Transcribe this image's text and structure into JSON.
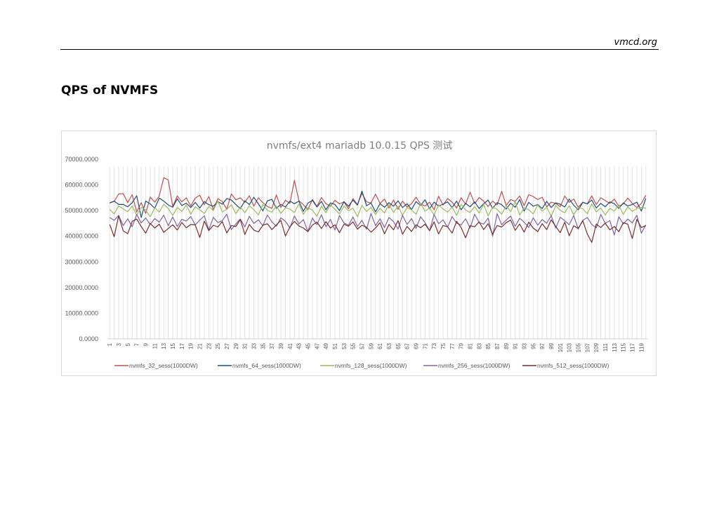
{
  "header": {
    "site": "vmcd.org"
  },
  "section": {
    "title": "QPS of NVMFS"
  },
  "chart_data": {
    "type": "line",
    "title": "nvmfs/ext4 mariadb 10.0.15 QPS 测试",
    "xlabel": "",
    "ylabel": "",
    "ylim": [
      0,
      70000
    ],
    "yticks": [
      0,
      10000,
      20000,
      30000,
      40000,
      50000,
      60000,
      70000
    ],
    "ytick_labels": [
      "0.0000",
      "10000.0000",
      "20000.0000",
      "30000.0000",
      "40000.0000",
      "50000.0000",
      "60000.0000",
      "70000.0000"
    ],
    "x": [
      1,
      2,
      3,
      4,
      5,
      6,
      7,
      8,
      9,
      10,
      11,
      12,
      13,
      14,
      15,
      16,
      17,
      18,
      19,
      20,
      21,
      22,
      23,
      24,
      25,
      26,
      27,
      28,
      29,
      30,
      31,
      32,
      33,
      34,
      35,
      36,
      37,
      38,
      39,
      40,
      41,
      42,
      43,
      44,
      45,
      46,
      47,
      48,
      49,
      50,
      51,
      52,
      53,
      54,
      55,
      56,
      57,
      58,
      59,
      60,
      61,
      62,
      63,
      64,
      65,
      66,
      67,
      68,
      69,
      70,
      71,
      72,
      73,
      74,
      75,
      76,
      77,
      78,
      79,
      80,
      81,
      82,
      83,
      84,
      85,
      86,
      87,
      88,
      89,
      90,
      91,
      92,
      93,
      94,
      95,
      96,
      97,
      98,
      99,
      100,
      101,
      102,
      103,
      104,
      105,
      106,
      107,
      108,
      109,
      110,
      111,
      112,
      113,
      114,
      115,
      116,
      117,
      118,
      119,
      120
    ],
    "xtick_labels": [
      "1",
      "3",
      "5",
      "7",
      "9",
      "11",
      "13",
      "15",
      "17",
      "19",
      "21",
      "23",
      "25",
      "27",
      "29",
      "31",
      "33",
      "35",
      "37",
      "39",
      "41",
      "43",
      "45",
      "47",
      "49",
      "51",
      "53",
      "55",
      "57",
      "59",
      "61",
      "63",
      "65",
      "67",
      "69",
      "71",
      "73",
      "75",
      "77",
      "79",
      "81",
      "83",
      "85",
      "87",
      "89",
      "91",
      "93",
      "95",
      "97",
      "99",
      "101",
      "103",
      "105",
      "107",
      "109",
      "111",
      "113",
      "115",
      "117",
      "119"
    ],
    "legend_position": "bottom",
    "grid": {
      "vertical": true,
      "horizontal": false
    },
    "series": [
      {
        "name": "nvmfs_32_sess(1000DW)",
        "color": "#c0504d",
        "values": [
          53000,
          53600,
          56500,
          56600,
          53100,
          56200,
          49400,
          53100,
          48900,
          55300,
          53300,
          55700,
          62800,
          62000,
          51600,
          55700,
          53400,
          55000,
          51800,
          54900,
          56000,
          52300,
          55500,
          50300,
          54700,
          53500,
          50500,
          56500,
          54200,
          55000,
          53200,
          55800,
          51700,
          55000,
          53100,
          51600,
          50900,
          56100,
          51200,
          54000,
          52800,
          61800,
          53900,
          52300,
          50400,
          54400,
          51600,
          55100,
          52700,
          51700,
          54000,
          52600,
          53400,
          50700,
          54700,
          52300,
          56800,
          53400,
          53000,
          56400,
          52800,
          54500,
          51000,
          54100,
          50500,
          53700,
          51400,
          52700,
          55200,
          52500,
          51800,
          53300,
          50300,
          55600,
          52200,
          54700,
          53300,
          51000,
          55000,
          52500,
          57200,
          52700,
          55100,
          53700,
          51600,
          53700,
          52200,
          57500,
          52000,
          54300,
          53600,
          55700,
          51900,
          56200,
          55500,
          54300,
          55200,
          51500,
          53300,
          52800,
          51500,
          55700,
          53200,
          54500,
          51300,
          53300,
          52600,
          55700,
          52400,
          55000,
          53900,
          52800,
          54500,
          51700,
          52600,
          54900,
          52800,
          51200,
          52800,
          56000
        ]
      },
      {
        "name": "nvmfs_64_sess(1000DW)",
        "color": "#1f4e79",
        "values": [
          53000,
          53700,
          52400,
          52400,
          51500,
          53100,
          55800,
          47300,
          53700,
          52600,
          50900,
          54900,
          53700,
          52200,
          51300,
          54600,
          52000,
          52900,
          51200,
          53200,
          51000,
          53500,
          52300,
          51700,
          53500,
          52500,
          54700,
          54100,
          52400,
          50800,
          53800,
          52300,
          55200,
          52600,
          49900,
          53800,
          54400,
          50900,
          52400,
          51400,
          53700,
          52700,
          53700,
          49700,
          52900,
          54000,
          51400,
          53600,
          50300,
          53000,
          52400,
          50000,
          53500,
          51700,
          54100,
          52100,
          57600,
          51900,
          53000,
          49500,
          52700,
          51300,
          53100,
          51700,
          53800,
          51200,
          52700,
          50400,
          53500,
          52000,
          54200,
          50700,
          53300,
          51800,
          52500,
          53400,
          51200,
          53700,
          50300,
          52800,
          51500,
          53400,
          50800,
          52700,
          54100,
          50900,
          53100,
          52300,
          50600,
          52900,
          51300,
          54300,
          49800,
          53200,
          51700,
          52400,
          50800,
          53600,
          51200,
          53000,
          52500,
          51400,
          54500,
          52100,
          50300,
          53200,
          52600,
          54100,
          51000,
          52800,
          51500,
          53400,
          52700,
          50900,
          53000,
          51800,
          52400,
          53300,
          49800,
          54800
        ]
      },
      {
        "name": "nvmfs_128_sess(1000DW)",
        "color": "#9bbb59",
        "values": [
          50500,
          48700,
          51800,
          50700,
          49600,
          51800,
          48200,
          51300,
          50200,
          47600,
          51100,
          49400,
          52500,
          50800,
          48100,
          51200,
          49700,
          52200,
          48600,
          51500,
          50300,
          48900,
          51600,
          50000,
          53800,
          49500,
          50500,
          52300,
          48800,
          51400,
          49200,
          51900,
          50400,
          48300,
          52400,
          50100,
          49400,
          51800,
          48900,
          51100,
          50600,
          49300,
          52600,
          48500,
          51200,
          50100,
          47800,
          51700,
          49200,
          52300,
          50500,
          48700,
          51800,
          49900,
          50900,
          47600,
          52100,
          49600,
          51300,
          48500,
          50900,
          49100,
          52400,
          49300,
          51700,
          48200,
          51200,
          50300,
          48500,
          52800,
          49800,
          51000,
          48300,
          52200,
          50600,
          49400,
          51500,
          48100,
          52400,
          50200,
          49300,
          51600,
          49000,
          52500,
          47900,
          51400,
          50500,
          48600,
          51900,
          49600,
          53600,
          48200,
          51100,
          50300,
          48700,
          52200,
          49800,
          51300,
          47800,
          52000,
          50100,
          49200,
          51900,
          48400,
          51200,
          50700,
          48800,
          52600,
          49500,
          51000,
          48300,
          50900,
          49800,
          52300,
          48500,
          51500,
          49700,
          50800,
          51300,
          50900
        ]
      },
      {
        "name": "nvmfs_256_sess(1000DW)",
        "color": "#8064a2",
        "values": [
          47300,
          46200,
          48100,
          44200,
          46800,
          43700,
          48500,
          45200,
          47100,
          44600,
          46900,
          45500,
          48200,
          44100,
          47500,
          43800,
          46600,
          45900,
          47700,
          44400,
          46300,
          48000,
          42500,
          47400,
          45300,
          46100,
          48600,
          42600,
          44800,
          46700,
          43600,
          47800,
          45000,
          46400,
          44100,
          48300,
          45600,
          43900,
          47200,
          45800,
          43300,
          47900,
          44800,
          46500,
          41900,
          47100,
          44500,
          48400,
          43700,
          46600,
          42400,
          48100,
          45200,
          44300,
          47500,
          43800,
          46200,
          42700,
          48900,
          44100,
          46800,
          43400,
          47300,
          45700,
          42800,
          48200,
          44600,
          46900,
          43100,
          47600,
          45300,
          42100,
          48500,
          44900,
          46400,
          43500,
          47700,
          45100,
          44400,
          46800,
          43200,
          48600,
          45400,
          44700,
          47100,
          40000,
          48800,
          44500,
          46300,
          47900,
          43900,
          47000,
          45500,
          43400,
          47200,
          44300,
          46500,
          45100,
          48000,
          43200,
          47400,
          46100,
          44500,
          48100,
          42800,
          46200,
          47300,
          44600,
          43300,
          48500,
          45000,
          46100,
          40500,
          47600,
          44800,
          46700,
          45200,
          48200,
          41200,
          44400
        ]
      },
      {
        "name": "nvmfs_512_sess(1000DW)",
        "color": "#7b2c2c",
        "values": [
          44600,
          39800,
          48000,
          42100,
          41000,
          45800,
          46700,
          43800,
          41200,
          45000,
          43200,
          44700,
          41500,
          43000,
          44500,
          42400,
          45400,
          43300,
          44600,
          44400,
          39500,
          45900,
          42200,
          44300,
          43600,
          45700,
          41300,
          44200,
          43800,
          46500,
          40700,
          44600,
          42400,
          41700,
          44300,
          44900,
          42600,
          44400,
          46200,
          40100,
          43600,
          45800,
          44000,
          43200,
          41800,
          44400,
          45500,
          43000,
          45700,
          43200,
          44500,
          41400,
          44700,
          43900,
          45600,
          42800,
          44300,
          43500,
          41600,
          43200,
          45300,
          40900,
          44600,
          42500,
          46100,
          40800,
          43800,
          41900,
          44500,
          43300,
          44700,
          42200,
          45600,
          40900,
          44200,
          43700,
          41200,
          45800,
          43400,
          39400,
          44100,
          43700,
          45600,
          42600,
          44900,
          40800,
          44200,
          43600,
          45300,
          46300,
          42300,
          44800,
          41600,
          45500,
          43200,
          41800,
          44900,
          42600,
          46400,
          43800,
          41400,
          45500,
          40200,
          44100,
          43000,
          46100,
          40900,
          37600,
          44800,
          43400,
          45100,
          42500,
          43800,
          41800,
          45300,
          44700,
          39100,
          46600,
          43400,
          44200
        ]
      }
    ]
  }
}
